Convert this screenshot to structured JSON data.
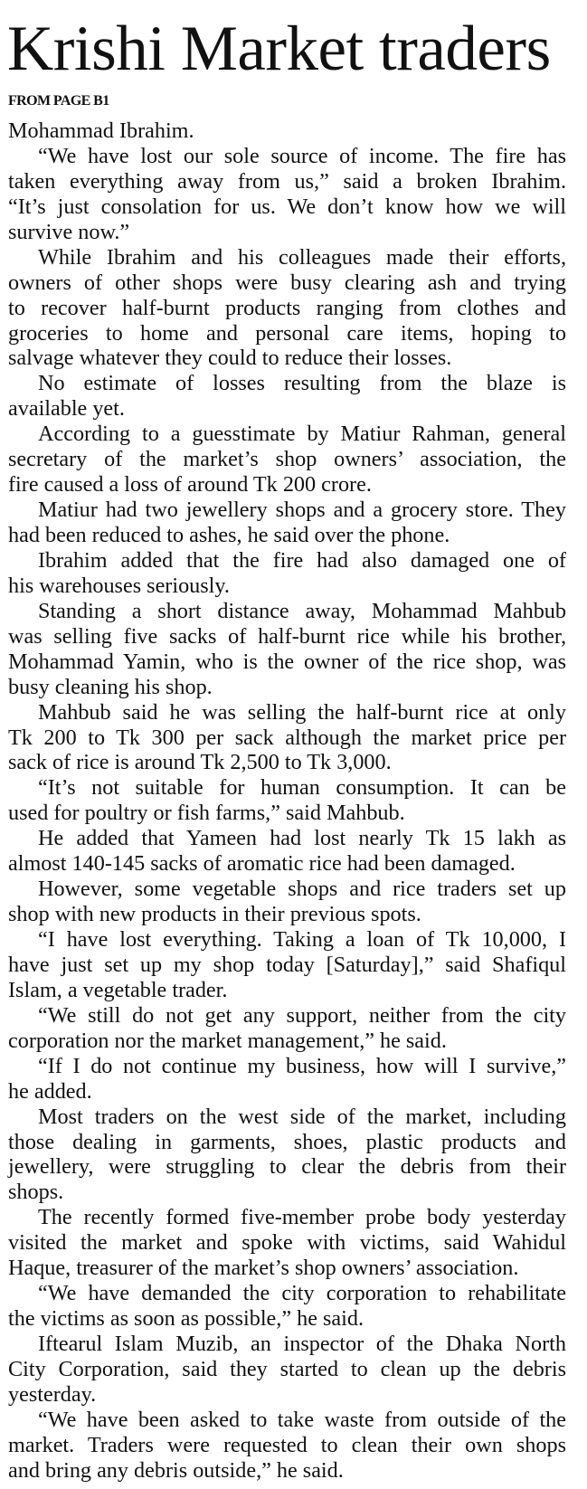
{
  "headline": "Krishi Market traders",
  "jump_label": "FROM PAGE B1",
  "paragraphs": [
    {
      "indent": false,
      "lines": [
        "Mohammad Ibrahim."
      ]
    },
    {
      "indent": true,
      "lines": [
        "“We have lost our sole source of income. The fire has",
        "taken everything away from us,” said a broken Ibrahim.",
        "“It’s just consolation for us. We don’t know how we will",
        "survive now.”"
      ]
    },
    {
      "indent": true,
      "lines": [
        "While Ibrahim and his colleagues made their efforts,",
        "owners of other shops were busy clearing ash and trying",
        "to recover half-burnt products ranging from clothes and",
        "groceries to home and personal care items, hoping to",
        "salvage whatever they could to reduce their losses."
      ]
    },
    {
      "indent": true,
      "lines": [
        "No estimate of losses resulting from the blaze is",
        "available yet."
      ]
    },
    {
      "indent": true,
      "lines": [
        "According to a guesstimate by Matiur Rahman, general",
        "secretary of the market’s shop owners’ association, the",
        "fire caused a loss of around Tk 200 crore."
      ]
    },
    {
      "indent": true,
      "lines": [
        "Matiur had two jewellery shops and a grocery store. They",
        "had been reduced to ashes, he said over the phone."
      ]
    },
    {
      "indent": true,
      "lines": [
        "Ibrahim added that the fire had also damaged one of",
        "his warehouses seriously."
      ]
    },
    {
      "indent": true,
      "lines": [
        "Standing a short distance away, Mohammad Mahbub",
        "was selling five sacks of half-burnt rice while his brother,",
        "Mohammad Yamin, who is the owner of the rice shop, was",
        "busy cleaning his shop."
      ]
    },
    {
      "indent": true,
      "lines": [
        "Mahbub said he was selling the half-burnt rice at only",
        "Tk 200 to Tk 300 per sack although the market price per",
        "sack of rice is around Tk 2,500 to Tk 3,000."
      ]
    },
    {
      "indent": true,
      "lines": [
        "“It’s not suitable for human consumption. It can be",
        "used for poultry or fish farms,” said Mahbub."
      ]
    },
    {
      "indent": true,
      "lines": [
        "He added that Yameen had lost nearly Tk 15 lakh as",
        "almost 140-145 sacks of aromatic rice had been damaged."
      ]
    },
    {
      "indent": true,
      "lines": [
        "However, some vegetable shops and rice traders set up",
        "shop with new products in their previous spots."
      ]
    },
    {
      "indent": true,
      "lines": [
        "“I have lost everything. Taking a loan of Tk 10,000, I",
        "have just set up my shop today [Saturday],” said Shafiqul",
        "Islam, a vegetable trader."
      ]
    },
    {
      "indent": true,
      "lines": [
        "“We still do not get any support, neither from the city",
        "corporation nor the market management,” he said."
      ]
    },
    {
      "indent": true,
      "lines": [
        "“If I do not continue my business, how will I survive,”",
        "he added."
      ]
    },
    {
      "indent": true,
      "lines": [
        "Most traders on the west side of the market, including",
        "those dealing in garments, shoes, plastic products and",
        "jewellery, were struggling to clear the debris from their",
        "shops."
      ]
    },
    {
      "indent": true,
      "lines": [
        "The recently formed five-member probe body yesterday",
        "visited the market and spoke with victims, said Wahidul",
        "Haque, treasurer of the market’s shop owners’ association."
      ]
    },
    {
      "indent": true,
      "lines": [
        "“We have demanded the city corporation to rehabilitate",
        "the victims as soon as possible,” he said."
      ]
    },
    {
      "indent": true,
      "lines": [
        "Iftearul Islam Muzib, an inspector of the Dhaka North",
        "City Corporation, said they started to clean up the debris",
        "yesterday."
      ]
    },
    {
      "indent": true,
      "lines": [
        "“We have been asked to take waste from outside of the",
        "market. Traders were requested to clean their own shops",
        "and bring any debris outside,” he said."
      ]
    }
  ]
}
